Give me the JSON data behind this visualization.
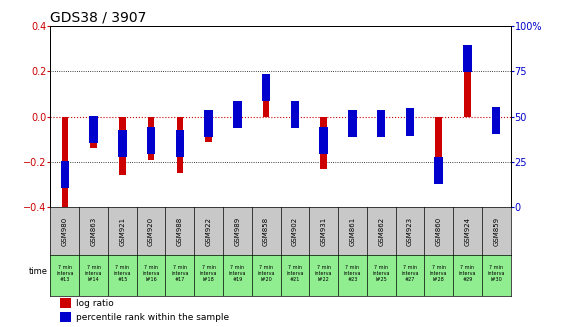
{
  "title": "GDS38 / 3907",
  "samples": [
    "GSM980",
    "GSM863",
    "GSM921",
    "GSM920",
    "GSM988",
    "GSM922",
    "GSM989",
    "GSM858",
    "GSM902",
    "GSM931",
    "GSM861",
    "GSM862",
    "GSM923",
    "GSM860",
    "GSM924",
    "GSM859"
  ],
  "time_labels": [
    "7 min\ninterva\n#13",
    "7 min\ninterva\nl#14",
    "7 min\ninterva\n#15",
    "7 min\ninterva\nl#16",
    "7 min\ninterva\n#17",
    "7 min\ninterva\nl#18",
    "7 min\ninterva\n#19",
    "7 min\ninterva\nl#20",
    "7 min\ninterva\n#21",
    "7 min\ninterva\nl#22",
    "7 min\ninterva\n#23",
    "7 min\ninterva\nl#25",
    "7 min\ninterva\n#27",
    "7 min\ninterva\nl#28",
    "7 min\ninterva\n#29",
    "7 min\ninterva\nl#30"
  ],
  "log_ratio": [
    -0.43,
    -0.14,
    -0.26,
    -0.19,
    -0.25,
    -0.11,
    0.0,
    0.07,
    0.0,
    -0.23,
    -0.05,
    -0.05,
    -0.04,
    -0.27,
    0.23,
    -0.06
  ],
  "percentile": [
    18,
    43,
    35,
    37,
    35,
    46,
    51,
    66,
    51,
    37,
    46,
    46,
    47,
    20,
    82,
    48
  ],
  "ylim_left": [
    -0.4,
    0.4
  ],
  "ylim_right": [
    0,
    100
  ],
  "yticks_left": [
    -0.4,
    -0.2,
    0.0,
    0.2,
    0.4
  ],
  "yticks_right": [
    0,
    25,
    50,
    75,
    100
  ],
  "bar_color_red": "#cc0000",
  "bar_color_blue": "#0000cc",
  "bg_plot": "#ffffff",
  "bg_sample_gray": "#c8c8c8",
  "bg_time_green": "#90ee90",
  "zero_line_color": "#cc0000",
  "title_fontsize": 10,
  "tick_fontsize": 7,
  "bar_width": 0.4,
  "blue_marker_size": 0.12
}
